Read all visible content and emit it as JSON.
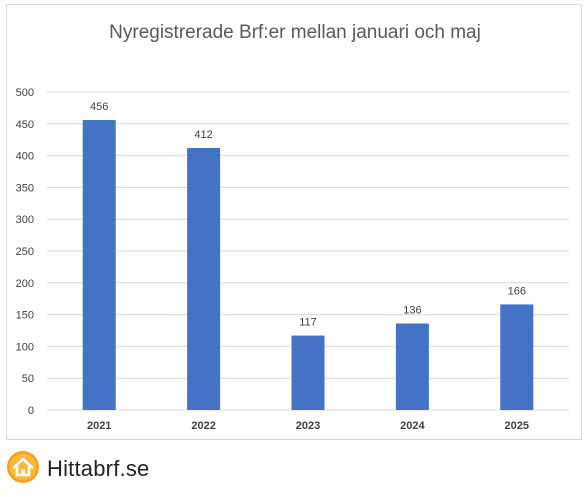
{
  "brand": {
    "name": "Hittabrf.se",
    "logo_icon": "house-icon",
    "logo_color": "#f4a21c"
  },
  "chart_data": {
    "type": "bar",
    "title": "Nyregistrerade Brf:er mellan januari och maj",
    "categories": [
      "2021",
      "2022",
      "2023",
      "2024",
      "2025"
    ],
    "values": [
      456,
      412,
      117,
      136,
      166
    ],
    "data_labels": [
      "456",
      "412",
      "117",
      "136",
      "166"
    ],
    "y_ticks": [
      "0",
      "50",
      "100",
      "150",
      "200",
      "250",
      "300",
      "350",
      "400",
      "450",
      "500"
    ],
    "xlabel": "",
    "ylabel": "",
    "ylim": [
      0,
      500
    ],
    "grid": true,
    "legend": "none",
    "bar_color": "#4472c4",
    "grid_color": "#d9d9d9"
  }
}
